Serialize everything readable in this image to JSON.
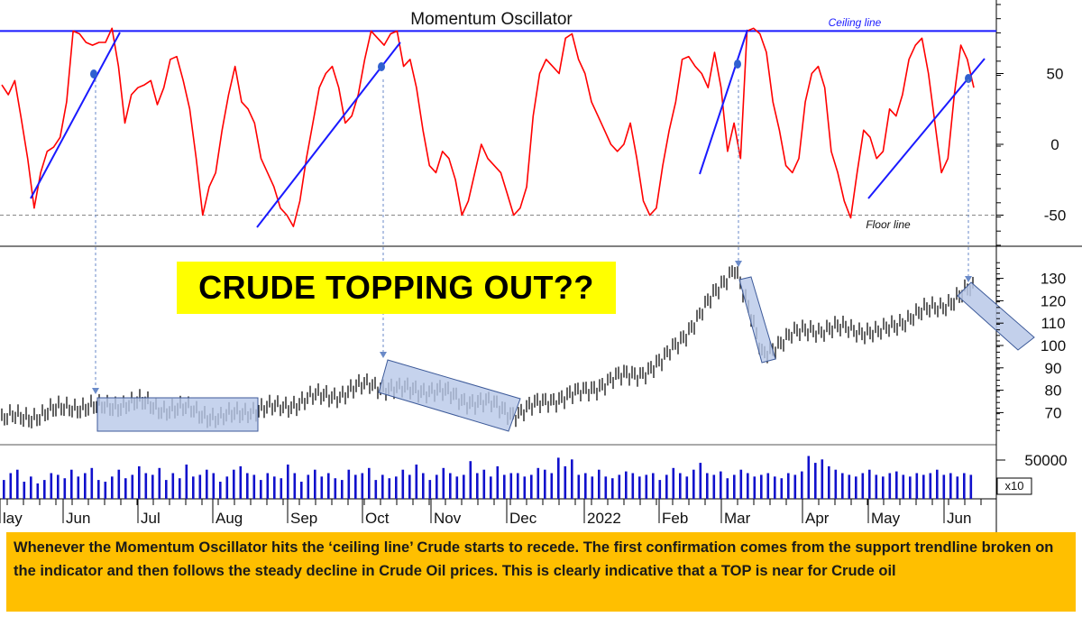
{
  "chart_data": [
    {
      "type": "line",
      "title": "Momentum Oscillator",
      "y_ticks": [
        50,
        0,
        -50
      ],
      "ylim": [
        -75,
        100
      ],
      "reference_lines": [
        {
          "label": "Ceiling line",
          "value": 80,
          "color": "#1a1aff",
          "style": "solid"
        },
        {
          "label": "Floor line",
          "value": -50,
          "color": "#888888",
          "style": "dashed"
        }
      ],
      "series": [
        {
          "color": "#ff0000",
          "values": [
            42,
            35,
            45,
            18,
            -10,
            -45,
            -20,
            -5,
            -2,
            5,
            30,
            80,
            78,
            72,
            70,
            72,
            72,
            82,
            55,
            15,
            35,
            40,
            42,
            45,
            28,
            40,
            60,
            62,
            45,
            25,
            -10,
            -50,
            -30,
            -20,
            10,
            35,
            55,
            30,
            25,
            15,
            -10,
            -20,
            -30,
            -45,
            -50,
            -58,
            -40,
            -10,
            15,
            40,
            50,
            55,
            40,
            15,
            20,
            35,
            60,
            80,
            75,
            70,
            78,
            80,
            55,
            60,
            40,
            10,
            -15,
            -20,
            -5,
            -10,
            -25,
            -50,
            -40,
            -20,
            0,
            -10,
            -15,
            -20,
            -35,
            -50,
            -45,
            -30,
            20,
            50,
            60,
            55,
            50,
            75,
            78,
            60,
            50,
            30,
            20,
            10,
            0,
            -5,
            0,
            15,
            -10,
            -40,
            -50,
            -45,
            -15,
            10,
            30,
            60,
            62,
            55,
            50,
            40,
            65,
            40,
            -5,
            15,
            -10,
            80,
            82,
            78,
            65,
            30,
            10,
            -15,
            -20,
            -10,
            30,
            50,
            55,
            40,
            -5,
            -20,
            -40,
            -52,
            -20,
            10,
            5,
            -10,
            -5,
            25,
            20,
            35,
            60,
            70,
            75,
            50,
            15,
            -20,
            -10,
            35,
            70,
            60,
            40
          ],
          "note": "red oscillator trace, monthly samples May 2021 – Jun 2022"
        },
        {
          "color": "#1a1aff",
          "type": "trendlines",
          "segments": [
            [
              -40,
              80
            ],
            [
              -58,
              65
            ],
            [
              -20,
              60
            ],
            [
              -40,
              60
            ]
          ]
        }
      ]
    },
    {
      "type": "bar",
      "subtype": "price",
      "ylabel": "",
      "y_ticks": [
        130,
        120,
        110,
        100,
        90,
        80,
        70
      ],
      "ylim": [
        60,
        140
      ],
      "x_tick_labels": [
        "lay",
        "Jun",
        "Jul",
        "Aug",
        "Sep",
        "Oct",
        "Nov",
        "Dec",
        "2022",
        "Feb",
        "Mar",
        "Apr",
        "May",
        "Jun"
      ],
      "price_path": [
        [
          "May",
          66
        ],
        [
          "Jun",
          72
        ],
        [
          "Jul",
          74
        ],
        [
          "Aug",
          68
        ],
        [
          "Sep",
          74
        ],
        [
          "Oct",
          82
        ],
        [
          "Nov",
          79
        ],
        [
          "Dec",
          70
        ],
        [
          "2022",
          80
        ],
        [
          "Feb",
          92
        ],
        [
          "Mar",
          135
        ],
        [
          "Mar",
          97
        ],
        [
          "Apr",
          108
        ],
        [
          "May",
          106
        ],
        [
          "Jun",
          124
        ]
      ],
      "annotations": [
        "sideways box Jun–Aug",
        "downward box Oct–Nov",
        "downward box Mar",
        "projected decline box Jun"
      ]
    },
    {
      "type": "bar",
      "subtype": "volume",
      "y_ticks": [
        50000
      ],
      "multiplier_label": "x10",
      "values": [
        22,
        30,
        34,
        20,
        26,
        18,
        22,
        30,
        28,
        24,
        34,
        26,
        30,
        36,
        22,
        20,
        26,
        34,
        24,
        28,
        38,
        30,
        28,
        36,
        22,
        30,
        24,
        40,
        26,
        28,
        34,
        30,
        20,
        26,
        34,
        38,
        30,
        28,
        22,
        30,
        26,
        24,
        40,
        30,
        20,
        28,
        34,
        26,
        30,
        24,
        22,
        34,
        28,
        30,
        36,
        22,
        28,
        24,
        26,
        34,
        28,
        40,
        30,
        22,
        28,
        36,
        30,
        26,
        28,
        44,
        30,
        34,
        26,
        38,
        28,
        30,
        30,
        26,
        28,
        36,
        34,
        30,
        48,
        38,
        46,
        28,
        30,
        26,
        34,
        26,
        24,
        28,
        32,
        30,
        26,
        28,
        30,
        22,
        28,
        36,
        30,
        26,
        34,
        42,
        30,
        28,
        32,
        24,
        28,
        34,
        30,
        26,
        28,
        30,
        26,
        24,
        30,
        28,
        32,
        50,
        42,
        46,
        38,
        34,
        30,
        28,
        26,
        30,
        34,
        28,
        26,
        30,
        32,
        28,
        26,
        30,
        28,
        30,
        34,
        28,
        30,
        26,
        30,
        28
      ]
    }
  ],
  "callout": {
    "text": "CRUDE TOPPING OUT??",
    "background": "#ffff00"
  },
  "caption": {
    "text": "Whenever the Momentum Oscillator hits the ‘ceiling line’ Crude starts to recede. The first confirmation comes from the support trendline broken on the indicator and then follows the steady decline in Crude Oil prices. This is clearly indicative that a TOP is near for Crude oil",
    "background": "#ffbf00"
  },
  "colors": {
    "oscillator": "#ff0000",
    "trendline": "#1a1aff",
    "price": "#111111",
    "volume": "#1010cc",
    "box_fill": "#b8c8e8",
    "box_stroke": "#3d5a99",
    "connector": "#6a8ac8"
  }
}
